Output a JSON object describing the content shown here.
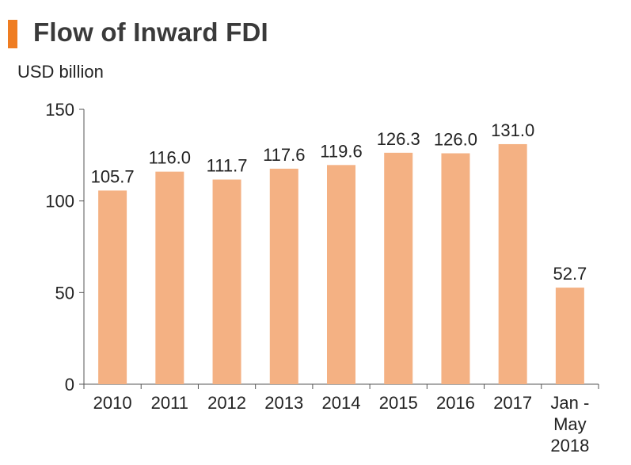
{
  "colors": {
    "accent": "#ef7d22",
    "bar": "#f4b183",
    "axis": "#555555"
  },
  "chart_data": {
    "type": "bar",
    "title": "Flow of Inward FDI",
    "ylabel": "USD billion",
    "xlabel": "",
    "ylim": [
      0,
      150
    ],
    "yticks": [
      0,
      50,
      100,
      150
    ],
    "grid": false,
    "categories": [
      [
        "2010"
      ],
      [
        "2011"
      ],
      [
        "2012"
      ],
      [
        "2013"
      ],
      [
        "2014"
      ],
      [
        "2015"
      ],
      [
        "2016"
      ],
      [
        "2017"
      ],
      [
        "Jan -",
        "May",
        "2018"
      ]
    ],
    "values": [
      105.7,
      116.0,
      111.7,
      117.6,
      119.6,
      126.3,
      126.0,
      131.0,
      52.7
    ],
    "value_labels": [
      "105.7",
      "116.0",
      "111.7",
      "117.6",
      "119.6",
      "126.3",
      "126.0",
      "131.0",
      "52.7"
    ]
  }
}
